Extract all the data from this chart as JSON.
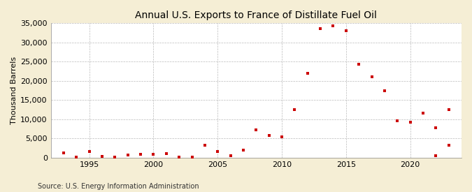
{
  "title": "Annual U.S. Exports to France of Distillate Fuel Oil",
  "ylabel": "Thousand Barrels",
  "source": "Source: U.S. Energy Information Administration",
  "fig_background_color": "#f5eed5",
  "plot_background_color": "#ffffff",
  "marker_color": "#cc0000",
  "years": [
    1993,
    1994,
    1995,
    1996,
    1997,
    1998,
    1999,
    2000,
    2001,
    2002,
    2003,
    2004,
    2005,
    2006,
    2007,
    2008,
    2009,
    2010,
    2011,
    2012,
    2013,
    2014,
    2015,
    2016,
    2017,
    2018,
    2019,
    2020,
    2021,
    2022,
    2023
  ],
  "values": [
    1200,
    200,
    1700,
    400,
    200,
    700,
    900,
    900,
    1000,
    200,
    100,
    3200,
    1600,
    500,
    1900,
    7200,
    5800,
    5500,
    12500,
    22000,
    33500,
    34200,
    33000,
    24200,
    21000,
    17400,
    9600,
    9300,
    11500,
    600,
    3200
  ],
  "extra_points": [
    [
      2022,
      7700
    ],
    [
      2023,
      12500
    ]
  ],
  "ylim": [
    0,
    35000
  ],
  "xlim": [
    1992,
    2024
  ],
  "yticks": [
    0,
    5000,
    10000,
    15000,
    20000,
    25000,
    30000,
    35000
  ],
  "xticks": [
    1995,
    2000,
    2005,
    2010,
    2015,
    2020
  ],
  "title_fontsize": 10,
  "tick_fontsize": 8,
  "ylabel_fontsize": 8,
  "source_fontsize": 7
}
